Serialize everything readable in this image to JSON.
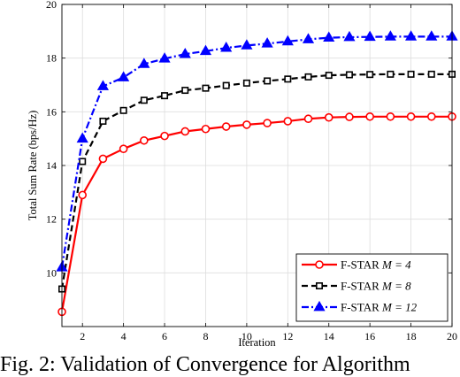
{
  "caption": "Fig. 2: Validation of Convergence for Algorithm",
  "chart_data": {
    "type": "line",
    "xlabel": "Iteration",
    "ylabel": "Total Sum Rate (bps/Hz)",
    "xlim": [
      1,
      20
    ],
    "ylim": [
      8,
      20
    ],
    "xticks": [
      2,
      4,
      6,
      8,
      10,
      12,
      14,
      16,
      18,
      20
    ],
    "yticks": [
      10,
      12,
      14,
      16,
      18,
      20
    ],
    "grid": true,
    "legend_position": "bottom-right",
    "x": [
      1,
      2,
      3,
      4,
      5,
      6,
      7,
      8,
      9,
      10,
      11,
      12,
      13,
      14,
      15,
      16,
      17,
      18,
      19,
      20
    ],
    "series": [
      {
        "name_prefix": "F-STAR ",
        "name_math": "M = 4",
        "color": "#ff0000",
        "line_style": "solid",
        "marker": "circle",
        "values": [
          8.55,
          12.9,
          14.25,
          14.62,
          14.93,
          15.1,
          15.27,
          15.36,
          15.45,
          15.52,
          15.58,
          15.65,
          15.74,
          15.79,
          15.81,
          15.82,
          15.82,
          15.82,
          15.82,
          15.82
        ]
      },
      {
        "name_prefix": "F-STAR ",
        "name_math": "M = 8",
        "color": "#000000",
        "line_style": "dashed",
        "marker": "square",
        "values": [
          9.4,
          14.15,
          15.65,
          16.05,
          16.43,
          16.6,
          16.8,
          16.88,
          16.98,
          17.07,
          17.15,
          17.22,
          17.3,
          17.36,
          17.38,
          17.39,
          17.4,
          17.4,
          17.4,
          17.4
        ]
      },
      {
        "name_prefix": "F-STAR ",
        "name_math": "M = 12",
        "color": "#0000ff",
        "line_style": "dashdot",
        "marker": "triangle",
        "values": [
          10.2,
          15.0,
          16.95,
          17.28,
          17.78,
          17.98,
          18.15,
          18.26,
          18.38,
          18.47,
          18.54,
          18.62,
          18.7,
          18.76,
          18.78,
          18.79,
          18.8,
          18.8,
          18.8,
          18.8
        ]
      }
    ]
  }
}
